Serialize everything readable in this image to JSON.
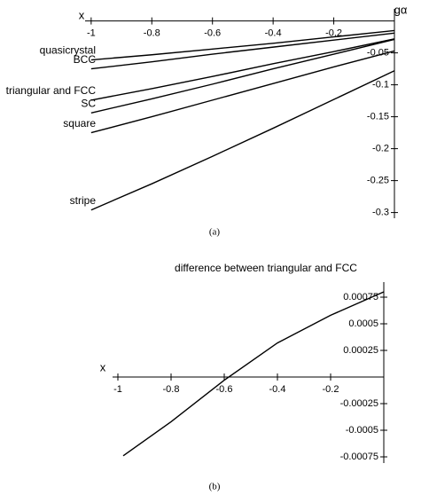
{
  "chart_data": [
    {
      "type": "line",
      "caption": "(a)",
      "x_label": "x",
      "y_label": "gα",
      "x": [
        -1,
        -0.8,
        -0.6,
        -0.4,
        -0.2,
        0
      ],
      "series": [
        {
          "name": "quasicrystal",
          "color": "#000000",
          "values": [
            -0.061,
            -0.053,
            -0.044,
            -0.035,
            -0.025,
            -0.015
          ]
        },
        {
          "name": "BCC",
          "color": "#000000",
          "values": [
            -0.075,
            -0.064,
            -0.052,
            -0.041,
            -0.03,
            -0.019
          ]
        },
        {
          "name": "triangular and FCC",
          "color": "#000000",
          "values": [
            -0.124,
            -0.106,
            -0.087,
            -0.067,
            -0.048,
            -0.028
          ]
        },
        {
          "name": "SC",
          "color": "#000000",
          "values": [
            -0.144,
            -0.122,
            -0.099,
            -0.075,
            -0.052,
            -0.029
          ]
        },
        {
          "name": "square",
          "color": "#000000",
          "values": [
            -0.175,
            -0.15,
            -0.124,
            -0.098,
            -0.072,
            -0.047
          ]
        },
        {
          "name": "stripe",
          "color": "#000000",
          "values": [
            -0.296,
            -0.255,
            -0.212,
            -0.168,
            -0.123,
            -0.078
          ]
        }
      ],
      "xlim": [
        -1.02,
        0
      ],
      "xticks": [
        -1,
        -0.8,
        -0.6,
        -0.4,
        -0.2
      ],
      "ylim": [
        -0.32,
        0.005
      ],
      "yticks": [
        -0.05,
        -0.1,
        -0.15,
        -0.2,
        -0.25,
        -0.3
      ],
      "grid": false
    },
    {
      "type": "line",
      "title": "difference between triangular and FCC",
      "caption": "(b)",
      "x_label": "x",
      "x": [
        -0.98,
        -0.8,
        -0.6,
        -0.4,
        -0.2,
        0
      ],
      "series": [
        {
          "name": null,
          "color": "#000000",
          "values": [
            -0.00074,
            -0.00042,
            -3e-05,
            0.00032,
            0.00058,
            0.0008
          ]
        }
      ],
      "xlim": [
        -1.02,
        0
      ],
      "xticks": [
        -1,
        -0.8,
        -0.6,
        -0.4,
        -0.2
      ],
      "ylim": [
        -0.0008,
        0.00085
      ],
      "yticks": [
        0.00075,
        0.0005,
        0.00025,
        -0.00025,
        -0.0005,
        -0.00075
      ],
      "grid": false
    }
  ]
}
